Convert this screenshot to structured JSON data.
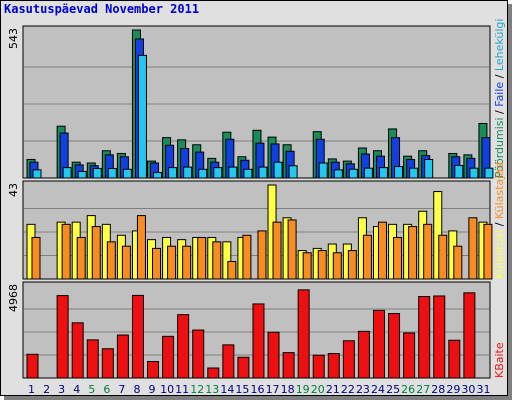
{
  "title": "Kasutuspäevad November 2011",
  "chart_data": [
    {
      "type": "bar",
      "panel": "top",
      "ymax_label": "543",
      "ymax": 543,
      "categories": [
        "1",
        "2",
        "3",
        "4",
        "5",
        "6",
        "7",
        "8",
        "9",
        "10",
        "11",
        "12",
        "13",
        "14",
        "15",
        "16",
        "17",
        "18",
        "19",
        "20",
        "21",
        "22",
        "23",
        "24",
        "25",
        "26",
        "27",
        "28",
        "29",
        "30",
        "31"
      ],
      "weekend_days": [
        "5",
        "6",
        "12",
        "13",
        "19",
        "20",
        "26",
        "27"
      ],
      "legend": [
        "Külastajad",
        "Külastusi",
        "Lehekülgi",
        "Faile",
        "Pöördumisi"
      ],
      "series": [
        {
          "name": "Pöördumisi",
          "color": "#1a8c5a",
          "values": [
            68,
            0,
            190,
            58,
            55,
            100,
            90,
            543,
            62,
            148,
            140,
            122,
            72,
            168,
            78,
            175,
            150,
            122,
            0,
            170,
            70,
            62,
            110,
            100,
            180,
            80,
            100,
            0,
            90,
            85,
            200
          ]
        },
        {
          "name": "Faile",
          "color": "#1040e0",
          "values": [
            58,
            0,
            165,
            48,
            45,
            85,
            78,
            510,
            55,
            120,
            108,
            95,
            58,
            142,
            65,
            128,
            125,
            98,
            0,
            142,
            58,
            52,
            88,
            80,
            148,
            68,
            82,
            0,
            78,
            72,
            148
          ]
        },
        {
          "name": "Lehekülgi",
          "color": "#22c8f0",
          "values": [
            30,
            0,
            38,
            24,
            35,
            35,
            32,
            450,
            20,
            38,
            40,
            32,
            38,
            40,
            32,
            40,
            58,
            45,
            0,
            55,
            30,
            32,
            36,
            38,
            42,
            36,
            68,
            0,
            46,
            36,
            36
          ]
        }
      ]
    },
    {
      "type": "bar",
      "panel": "middle",
      "ymax_label": "43",
      "ymax": 43,
      "categories": [
        "1",
        "2",
        "3",
        "4",
        "5",
        "6",
        "7",
        "8",
        "9",
        "10",
        "11",
        "12",
        "13",
        "14",
        "15",
        "16",
        "17",
        "18",
        "19",
        "20",
        "21",
        "22",
        "23",
        "24",
        "25",
        "26",
        "27",
        "28",
        "29",
        "30",
        "31"
      ],
      "series": [
        {
          "name": "Külastusi",
          "color": "#ffff44",
          "values": [
            25,
            0,
            26,
            26,
            29,
            25,
            20,
            22,
            18,
            19,
            18,
            19,
            19,
            17,
            19,
            0,
            43,
            28,
            13,
            14,
            16,
            16,
            28,
            24,
            25,
            25,
            31,
            40,
            22,
            0,
            26
          ]
        },
        {
          "name": "Külastajad",
          "color": "#f88c20",
          "values": [
            19,
            0,
            25,
            19,
            24,
            17,
            15,
            29,
            14,
            15,
            15,
            19,
            17,
            8,
            20,
            22,
            26,
            27,
            12,
            13,
            12,
            13,
            20,
            26,
            19,
            24,
            25,
            20,
            15,
            28,
            25
          ]
        }
      ]
    },
    {
      "type": "bar",
      "panel": "bottom",
      "ymax_label": "4968",
      "ymax": 4968,
      "categories": [
        "1",
        "2",
        "3",
        "4",
        "5",
        "6",
        "7",
        "8",
        "9",
        "10",
        "11",
        "12",
        "13",
        "14",
        "15",
        "16",
        "17",
        "18",
        "19",
        "20",
        "21",
        "22",
        "23",
        "24",
        "25",
        "26",
        "27",
        "28",
        "29",
        "30",
        "31"
      ],
      "series": [
        {
          "name": "KBaite",
          "color": "#ee1010",
          "values": [
            1280,
            0,
            4450,
            2980,
            2060,
            1580,
            2320,
            4460,
            890,
            2250,
            3420,
            2590,
            540,
            1790,
            1120,
            4000,
            2470,
            1370,
            4760,
            1230,
            1320,
            2010,
            2520,
            3650,
            3480,
            2430,
            4400,
            4430,
            2040,
            4600,
            0
          ]
        }
      ]
    }
  ],
  "side_labels": {
    "top": [
      "Pöördumisi",
      "Faile",
      "Lehekülgi"
    ],
    "middle": [
      "Külastusi",
      "Külastajad"
    ],
    "bottom": [
      "KBaite"
    ],
    "separator": " / "
  },
  "colors": {
    "panel_bg": "#c0c0c0",
    "frame_bg": "#e0e0e0",
    "grid": "#808080",
    "title": "#0000cc",
    "weekend_label": "#008040",
    "weekday_label": "#000080"
  }
}
